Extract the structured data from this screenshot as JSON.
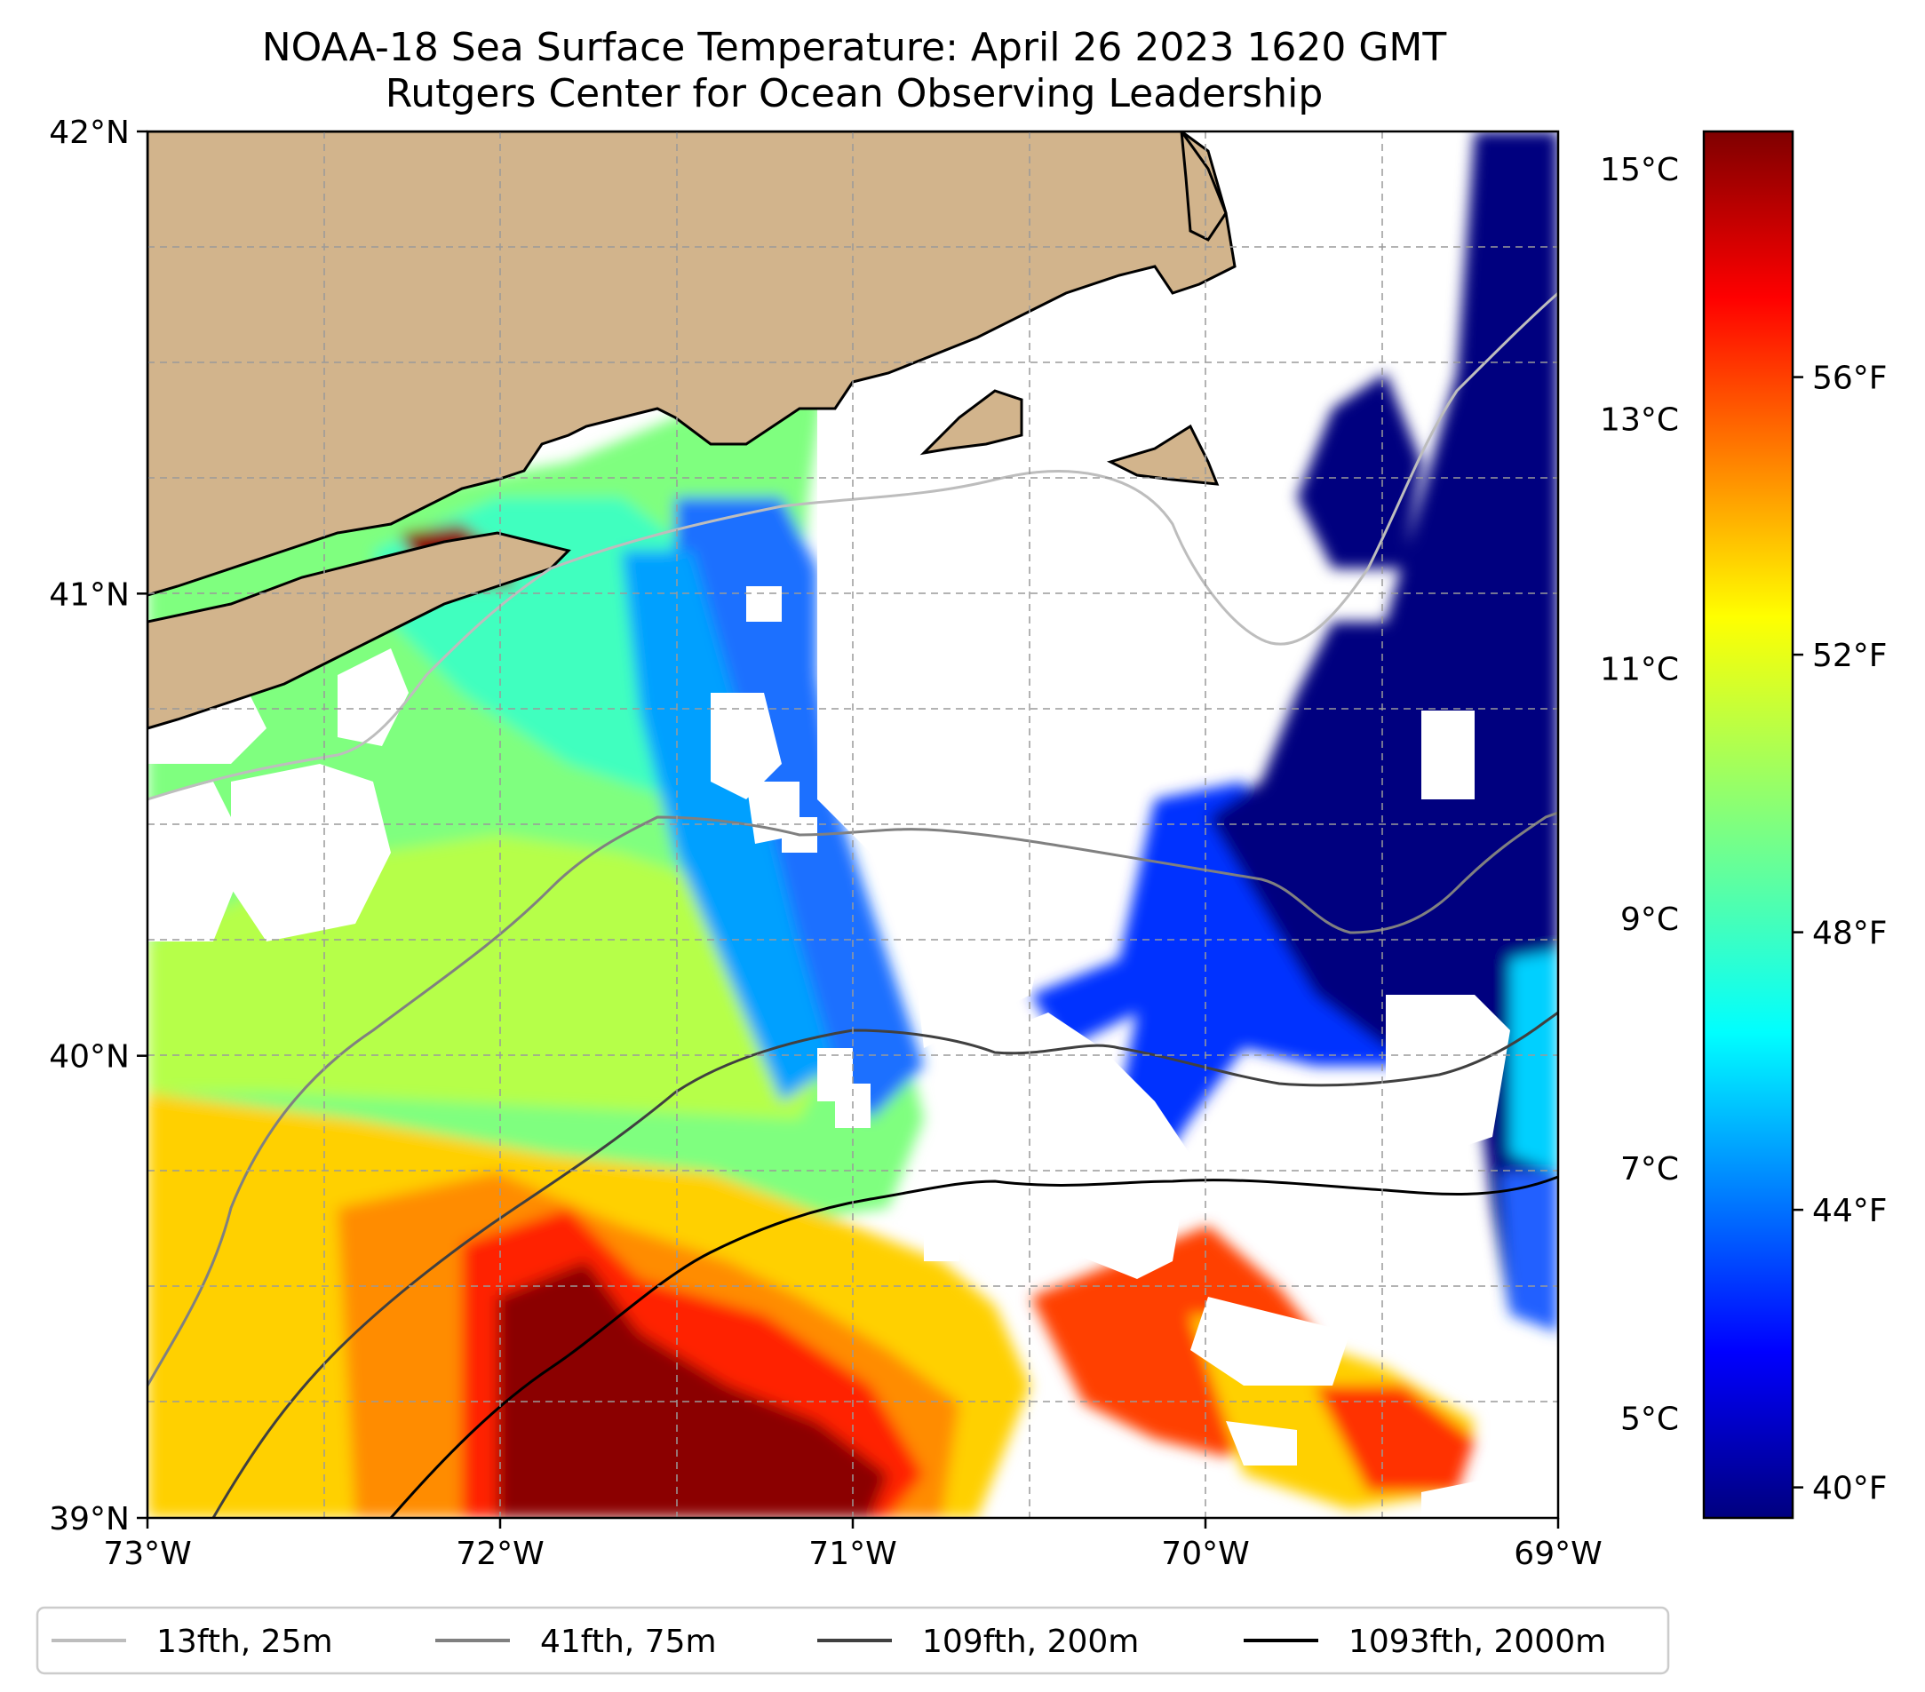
{
  "title": {
    "line1": "NOAA-18 Sea Surface Temperature: April 26 2023 1620 GMT",
    "line2": "Rutgers Center for Ocean Observing Leadership"
  },
  "map": {
    "lon_range": [
      -73,
      -69
    ],
    "lat_range": [
      39,
      42
    ],
    "lon_ticks": [
      {
        "value": -73,
        "label": "73°W"
      },
      {
        "value": -72,
        "label": "72°W"
      },
      {
        "value": -71,
        "label": "71°W"
      },
      {
        "value": -70,
        "label": "70°W"
      },
      {
        "value": -69,
        "label": "69°W"
      }
    ],
    "lat_ticks": [
      {
        "value": 42,
        "label": "42°N"
      },
      {
        "value": 41,
        "label": "41°N"
      },
      {
        "value": 40,
        "label": "40°N"
      },
      {
        "value": 39,
        "label": "39°N"
      }
    ],
    "gridlines": "dashed",
    "land_color": "#d2b48c",
    "cloud_mask_color": "#ffffff"
  },
  "colorbar": {
    "colormap": "jet",
    "range_c": [
      4.2,
      15.3
    ],
    "celsius_ticks": [
      {
        "value": 5,
        "label": "5°C"
      },
      {
        "value": 7,
        "label": "7°C"
      },
      {
        "value": 9,
        "label": "9°C"
      },
      {
        "value": 11,
        "label": "11°C"
      },
      {
        "value": 13,
        "label": "13°C"
      },
      {
        "value": 15,
        "label": "15°C"
      }
    ],
    "fahrenheit_ticks": [
      {
        "value": 40,
        "label": "40°F"
      },
      {
        "value": 44,
        "label": "44°F"
      },
      {
        "value": 48,
        "label": "48°F"
      },
      {
        "value": 52,
        "label": "52°F"
      },
      {
        "value": 56,
        "label": "56°F"
      }
    ]
  },
  "legend": {
    "placement": "bottom",
    "items": [
      {
        "label": "13fth, 25m",
        "color": "#bdbdbd"
      },
      {
        "label": "41fth, 75m",
        "color": "#808080"
      },
      {
        "label": "109fth, 200m",
        "color": "#404040"
      },
      {
        "label": "1093fth, 2000m",
        "color": "#000000"
      }
    ]
  }
}
